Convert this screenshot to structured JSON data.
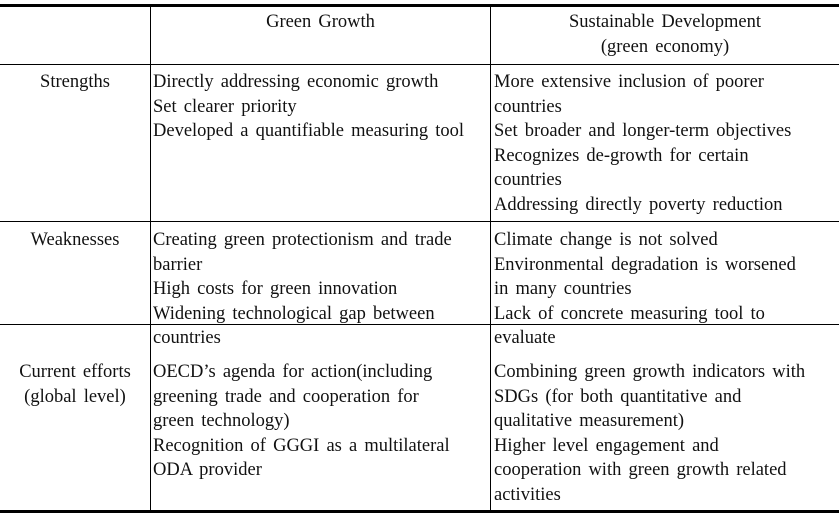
{
  "table": {
    "headers": [
      "",
      "Green Growth",
      "Sustainable Development\n(green economy)"
    ],
    "header_lines": {
      "green_growth": [
        "Green Growth"
      ],
      "sustainable_development": [
        "Sustainable Development",
        "(green economy)"
      ]
    },
    "rows": [
      {
        "label": [
          "Strengths"
        ],
        "green_growth": [
          "Directly addressing economic growth",
          "Set clearer priority",
          "Developed a quantifiable measuring tool"
        ],
        "sustainable_development": [
          "More extensive inclusion of poorer",
          "countries",
          "Set broader and longer-term objectives",
          "Recognizes de-growth for certain",
          "countries",
          "Addressing directly poverty reduction"
        ]
      },
      {
        "label": [
          "Weaknesses"
        ],
        "green_growth": [
          "Creating green protectionism and trade",
          "barrier",
          "High costs for green innovation",
          "Widening technological gap between",
          "countries"
        ],
        "sustainable_development": [
          "Climate change is not solved",
          "Environmental degradation is worsened",
          "in many countries",
          "Lack of concrete measuring tool to",
          "evaluate"
        ]
      },
      {
        "label": [
          "Current efforts",
          "(global level)"
        ],
        "green_growth": [
          "OECD’s agenda for action(including",
          "greening trade and cooperation for",
          "green technology)",
          "Recognition of GGGI as a multilateral",
          "ODA provider"
        ],
        "sustainable_development": [
          "Combining green growth indicators with",
          "SDGs (for both quantitative and",
          "qualitative measurement)",
          "Higher level engagement and",
          "cooperation with green growth related",
          "activities"
        ]
      }
    ]
  }
}
